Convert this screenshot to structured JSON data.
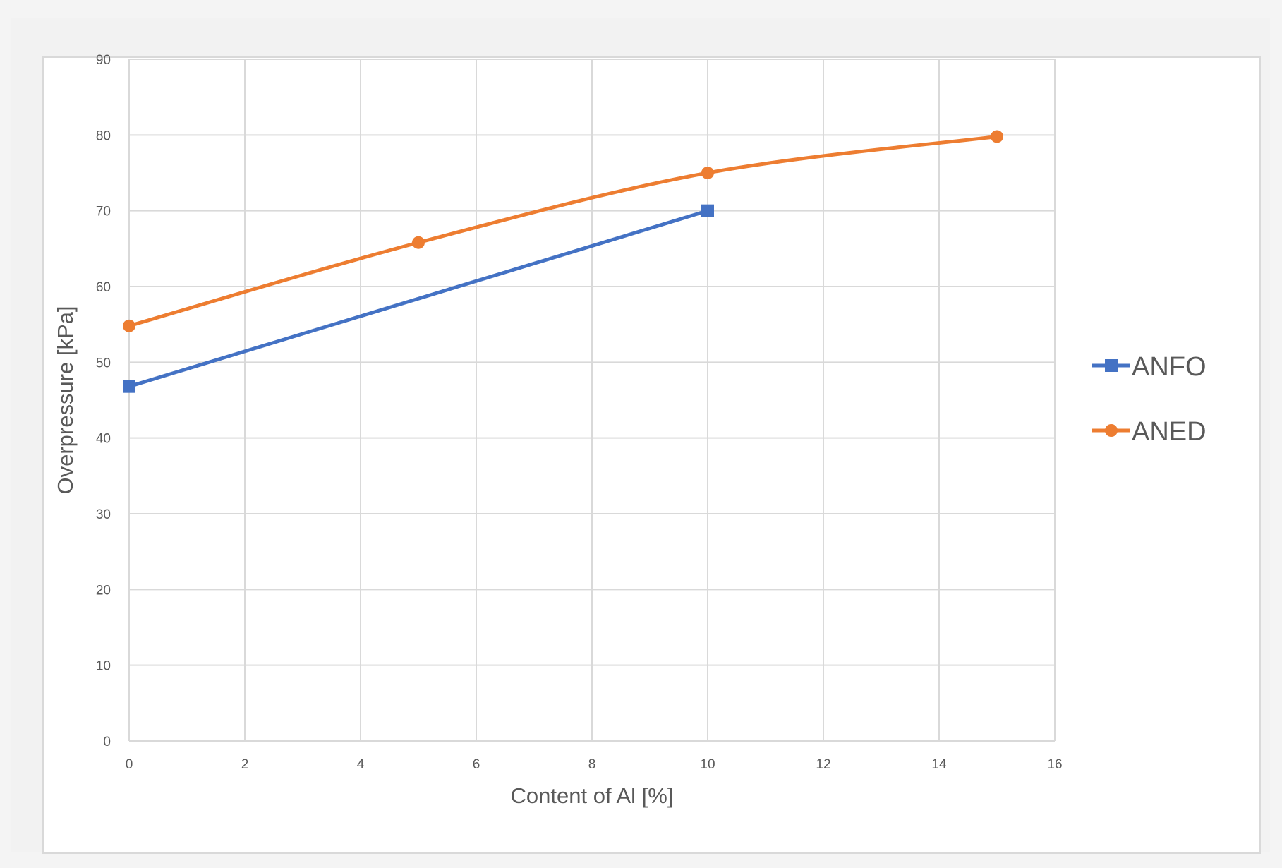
{
  "chart_data": {
    "type": "line",
    "title": "",
    "xlabel": "Content of Al [%]",
    "ylabel": "Overpressure [kPa]",
    "xlim": [
      0,
      16
    ],
    "ylim": [
      0,
      90
    ],
    "xticks": [
      0,
      2,
      4,
      6,
      8,
      10,
      12,
      14,
      16
    ],
    "yticks": [
      0,
      10,
      20,
      30,
      40,
      50,
      60,
      70,
      80,
      90
    ],
    "grid": true,
    "legend_position": "right",
    "series": [
      {
        "name": "ANFO",
        "color": "#4472c4",
        "marker": "square",
        "x": [
          0,
          10
        ],
        "y": [
          46.8,
          70
        ]
      },
      {
        "name": "ANED",
        "color": "#ed7d31",
        "marker": "circle",
        "x": [
          0,
          5,
          10,
          15
        ],
        "y": [
          54.8,
          65.8,
          75,
          79.8
        ]
      }
    ]
  }
}
